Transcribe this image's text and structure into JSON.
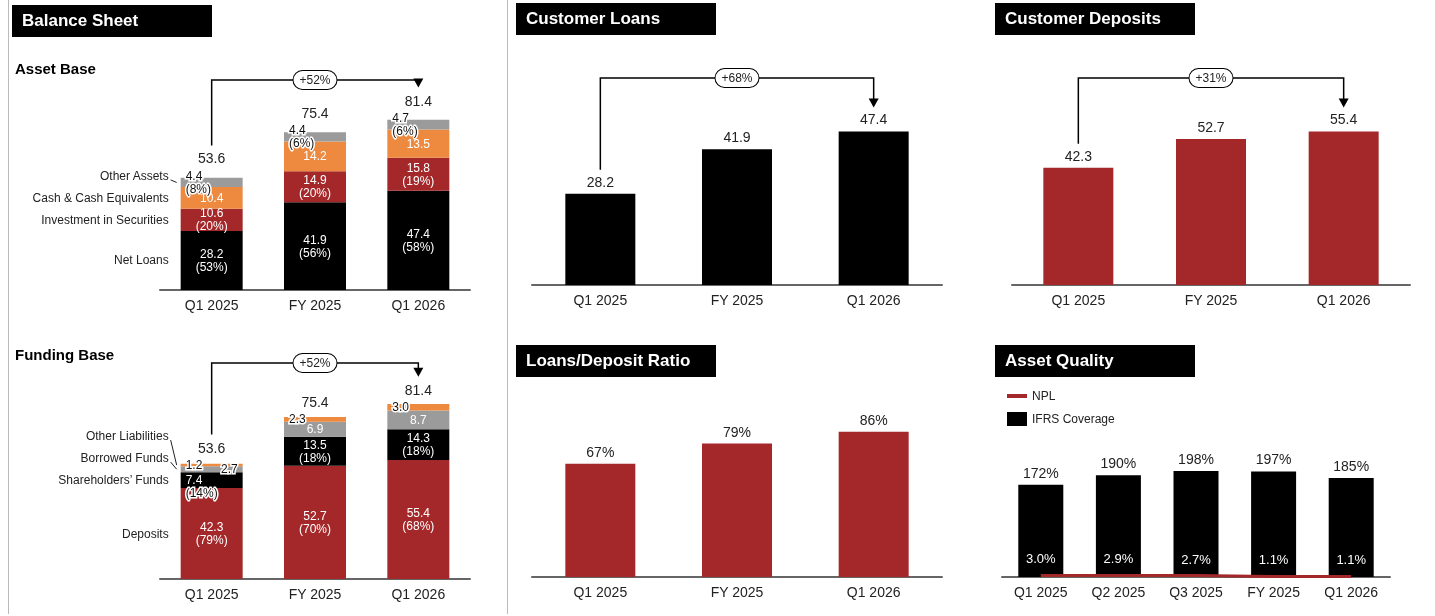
{
  "chart_data": [
    {
      "type": "bar",
      "title": "Balance Sheet",
      "subtitle": "Asset Base",
      "stacked": true,
      "categories": [
        "Q1 2025",
        "FY 2025",
        "Q1 2026"
      ],
      "series": [
        {
          "name": "Net Loans",
          "color": "#000000",
          "values": [
            28.2,
            41.9,
            47.4
          ],
          "value_labels": [
            "28.2\n(53%)",
            "41.9\n(56%)",
            "47.4\n(58%)"
          ]
        },
        {
          "name": "Investment in Securities",
          "color": "#a4282a",
          "values": [
            10.6,
            14.9,
            15.8
          ],
          "value_labels": [
            "10.6\n(20%)",
            "14.9\n(20%)",
            "15.8\n(19%)"
          ]
        },
        {
          "name": "Cash & Cash Equivalents",
          "color": "#ed8a3f",
          "values": [
            10.4,
            14.2,
            13.5
          ],
          "value_labels": [
            "10.4",
            "14.2",
            "13.5"
          ]
        },
        {
          "name": "Other Assets",
          "color": "#9b9b9b",
          "values": [
            4.4,
            4.4,
            4.7
          ],
          "value_labels": [
            "4.4\n(8%)",
            "4.4\n(6%)",
            "4.7\n(6%)"
          ]
        }
      ],
      "totals": [
        "53.6",
        "75.4",
        "81.4"
      ],
      "annotations": [
        "+52%"
      ],
      "legend": "left"
    },
    {
      "type": "bar",
      "subtitle": "Funding Base",
      "legend": "left",
      "stacked": true,
      "categories": [
        "Q1 2025",
        "FY 2025",
        "Q1 2026"
      ],
      "series": [
        {
          "name": "Deposits",
          "color": "#a4282a",
          "values": [
            42.3,
            52.7,
            55.4
          ],
          "value_labels": [
            "42.3\n(79%)",
            "52.7\n(70%)",
            "55.4\n(68%)"
          ]
        },
        {
          "name": "Shareholders’ Funds",
          "color": "#000000",
          "values": [
            7.4,
            13.5,
            14.3
          ],
          "value_labels": [
            "7.4\n(14%)",
            "13.5\n(18%)",
            "14.3\n(18%)"
          ]
        },
        {
          "name": "Borrowed Funds",
          "color": "#9b9b9b",
          "values": [
            2.7,
            6.9,
            8.7
          ],
          "value_labels": [
            "2.7",
            "6.9",
            "8.7"
          ]
        },
        {
          "name": "Other Liabilities",
          "color": "#ed8a3f",
          "values": [
            1.2,
            2.3,
            3.0
          ],
          "value_labels": [
            "1.2",
            "2.3",
            "3.0"
          ]
        }
      ],
      "totals": [
        "53.6",
        "75.4",
        "81.4"
      ],
      "annotations": [
        "+52%"
      ]
    },
    {
      "type": "bar",
      "title": "Customer Loans",
      "categories": [
        "Q1 2025",
        "FY 2025",
        "Q1 2026"
      ],
      "values": [
        28.2,
        41.9,
        47.4
      ],
      "color": "#000000",
      "data_labels": true,
      "annotations": [
        "+68%"
      ]
    },
    {
      "type": "bar",
      "title": "Customer Deposits",
      "categories": [
        "Q1 2025",
        "FY 2025",
        "Q1 2026"
      ],
      "values": [
        42.3,
        52.7,
        55.4
      ],
      "color": "#a4282a",
      "data_labels": true,
      "annotations": [
        "+31%"
      ]
    },
    {
      "type": "bar",
      "title": "Loans/Deposit Ratio",
      "categories": [
        "Q1 2025",
        "FY 2025",
        "Q1 2026"
      ],
      "values": [
        67,
        79,
        86
      ],
      "color": "#a4282a",
      "value_labels": [
        "67%",
        "79%",
        "86%"
      ]
    },
    {
      "type": "bar",
      "title": "Asset Quality",
      "categories": [
        "Q1 2025",
        "Q2 2025",
        "Q3 2025",
        "FY 2025",
        "Q1 2026"
      ],
      "legend": "top left",
      "marker": "none",
      "series": [
        {
          "name": "NPL",
          "type": "line",
          "color": "#a4282a",
          "values": [
            3.0,
            2.9,
            2.7,
            1.1,
            1.1
          ],
          "value_labels": [
            "3.0%",
            "2.9%",
            "2.7%",
            "1.1%",
            "1.1%"
          ]
        },
        {
          "name": "IFRS Coverage",
          "color": "#000000",
          "values": [
            172,
            190,
            198,
            197,
            185
          ],
          "value_labels": [
            "172%",
            "190%",
            "198%",
            "197%",
            "185%"
          ]
        }
      ]
    }
  ]
}
